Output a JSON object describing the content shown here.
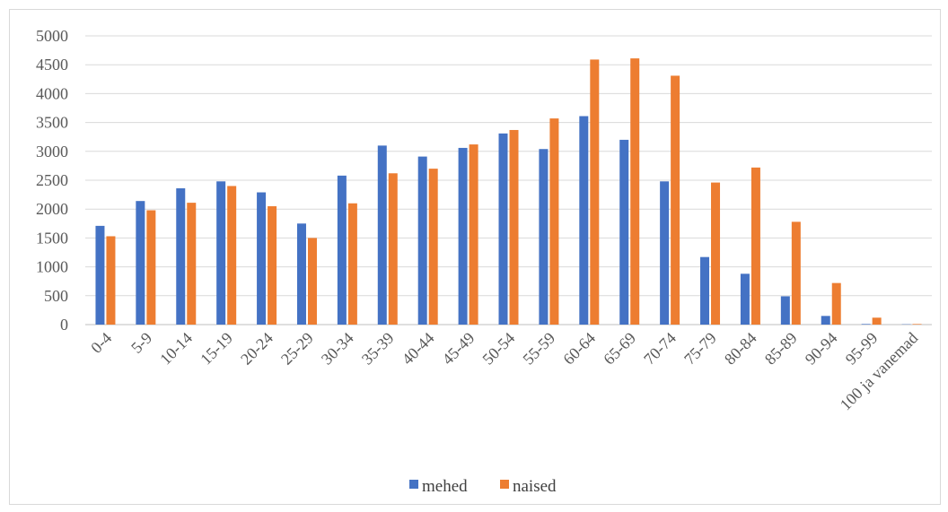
{
  "chart_data": {
    "type": "bar",
    "title": "",
    "xlabel": "",
    "ylabel": "",
    "categories": [
      "0-4",
      "5-9",
      "10-14",
      "15-19",
      "20-24",
      "25-29",
      "30-34",
      "35-39",
      "40-44",
      "45-49",
      "50-54",
      "55-59",
      "60-64",
      "65-69",
      "70-74",
      "75-79",
      "80-84",
      "85-89",
      "90-94",
      "95-99",
      "100 ja vanemad"
    ],
    "series": [
      {
        "name": "mehed",
        "color": "#4472c4",
        "values": [
          1710,
          2140,
          2360,
          2480,
          2290,
          1750,
          2580,
          3100,
          2910,
          3060,
          3310,
          3040,
          3610,
          3200,
          2480,
          1170,
          880,
          490,
          150,
          10,
          5
        ]
      },
      {
        "name": "naised",
        "color": "#ed7d31",
        "values": [
          1530,
          1980,
          2110,
          2400,
          2050,
          1500,
          2100,
          2620,
          2700,
          3120,
          3370,
          3570,
          4590,
          4610,
          4310,
          2460,
          2720,
          1780,
          720,
          120,
          10
        ]
      }
    ],
    "ylim": [
      0,
      5000
    ],
    "yticks": [
      "0",
      "500",
      "1000",
      "1500",
      "2000",
      "2500",
      "3000",
      "3500",
      "4000",
      "4500",
      "5000"
    ],
    "grid": true,
    "legend_position": "bottom"
  }
}
